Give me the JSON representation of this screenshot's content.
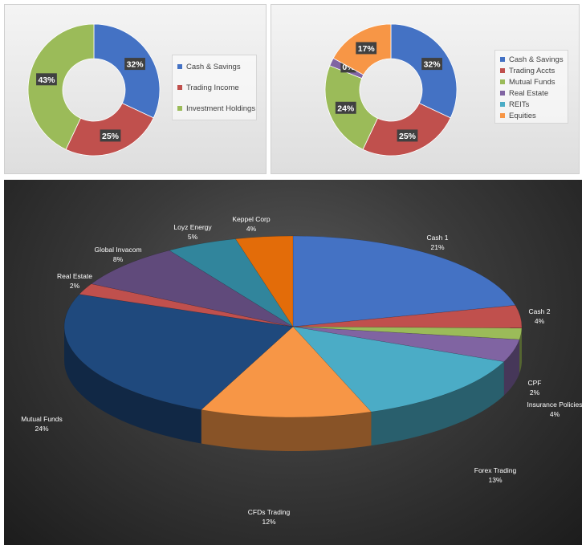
{
  "chart_data": [
    {
      "type": "pie",
      "variant": "donut",
      "legend_position": "right",
      "categories": [
        "Cash & Savings",
        "Trading Income",
        "Investment Holdings"
      ],
      "values": [
        32,
        25,
        43
      ],
      "labels": [
        "32%",
        "25%",
        "43%"
      ],
      "colors": [
        "#4472c4",
        "#c0504d",
        "#9bbb59"
      ]
    },
    {
      "type": "pie",
      "variant": "donut",
      "legend_position": "right",
      "categories": [
        "Cash & Savings",
        "Trading Accts",
        "Mutual Funds",
        "Real Estate",
        "REITs",
        "Equities"
      ],
      "values": [
        32,
        25,
        24,
        2,
        0,
        17
      ],
      "labels": [
        "32%",
        "25%",
        "24%",
        "",
        "0%",
        "17%"
      ],
      "colors": [
        "#4472c4",
        "#c0504d",
        "#9bbb59",
        "#8064a2",
        "#4bacc6",
        "#f79646"
      ]
    },
    {
      "type": "pie",
      "variant": "3d",
      "legend_position": "none",
      "categories": [
        "Cash 1",
        "Cash 2",
        "CPF",
        "Insurance Policies",
        "Forex Trading",
        "CFDs Trading",
        "Mutual Funds",
        "Real Estate",
        "Global Invacom",
        "Loyz Energy",
        "Keppel Corp"
      ],
      "values": [
        21,
        4,
        2,
        4,
        13,
        12,
        24,
        2,
        8,
        5,
        4
      ],
      "labels": [
        "21%",
        "4%",
        "2%",
        "4%",
        "13%",
        "12%",
        "24%",
        "2%",
        "8%",
        "5%",
        "4%"
      ],
      "colors": [
        "#4472c4",
        "#c0504d",
        "#9bbb59",
        "#8064a2",
        "#4bacc6",
        "#f79646",
        "#1f497d",
        "#c0504d",
        "#604a7b",
        "#31859c",
        "#e36c09"
      ]
    }
  ]
}
